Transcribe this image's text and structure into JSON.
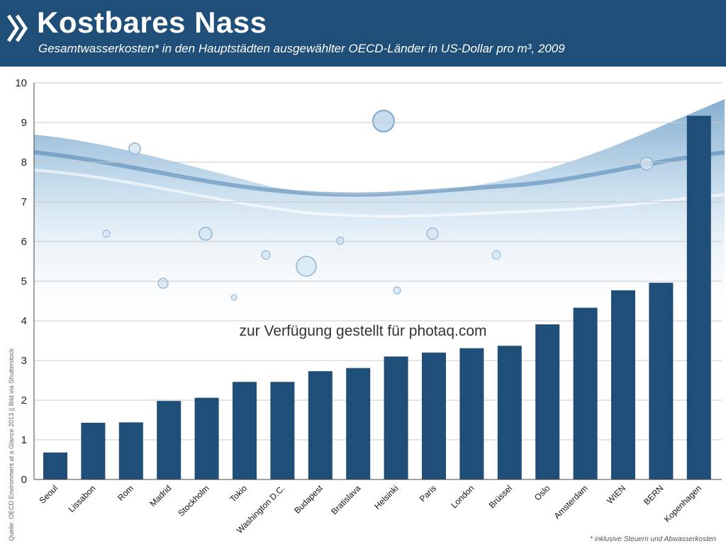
{
  "header": {
    "title": "Kostbares Nass",
    "subtitle": "Gesamtwasserkosten* in den Hauptstädten ausgewählter OECD-Länder in US-Dollar pro m³, 2009",
    "logo_icon": "oecd-chevron-logo-icon"
  },
  "watermark": "zur Verfügung gestellt für photaq.com",
  "source": "Quelle: OECD Environment at a Glance 2013 || Bild via Shutterstock",
  "footnote": "* inklusive Steuern und Abwasserkosten",
  "colors": {
    "header_bg": "#1f4e79",
    "bar": "#1f4e79",
    "water": "#9fc4e0"
  },
  "chart_data": {
    "type": "bar",
    "title": "Kostbares Nass",
    "subtitle": "Gesamtwasserkosten* in den Hauptstädten ausgewählter OECD-Länder in US-Dollar pro m³, 2009",
    "xlabel": "",
    "ylabel": "",
    "ylim": [
      0,
      10
    ],
    "yticks": [
      0,
      1,
      2,
      3,
      4,
      5,
      6,
      7,
      8,
      9,
      10
    ],
    "grid": true,
    "legend": "none",
    "categories": [
      "Seoul",
      "Lissabon",
      "Rom",
      "Madrid",
      "Stockholm",
      "Tokio",
      "Washington D.C.",
      "Budapest",
      "Bratislava",
      "Helsinki",
      "Paris",
      "London",
      "Brüssel",
      "Oslo",
      "Amsterdam",
      "WIEN",
      "BERN",
      "Kopenhagen"
    ],
    "values": [
      0.68,
      1.43,
      1.44,
      1.98,
      2.06,
      2.46,
      2.46,
      2.73,
      2.81,
      3.1,
      3.2,
      3.31,
      3.37,
      3.91,
      4.33,
      4.77,
      4.96,
      9.17
    ]
  }
}
